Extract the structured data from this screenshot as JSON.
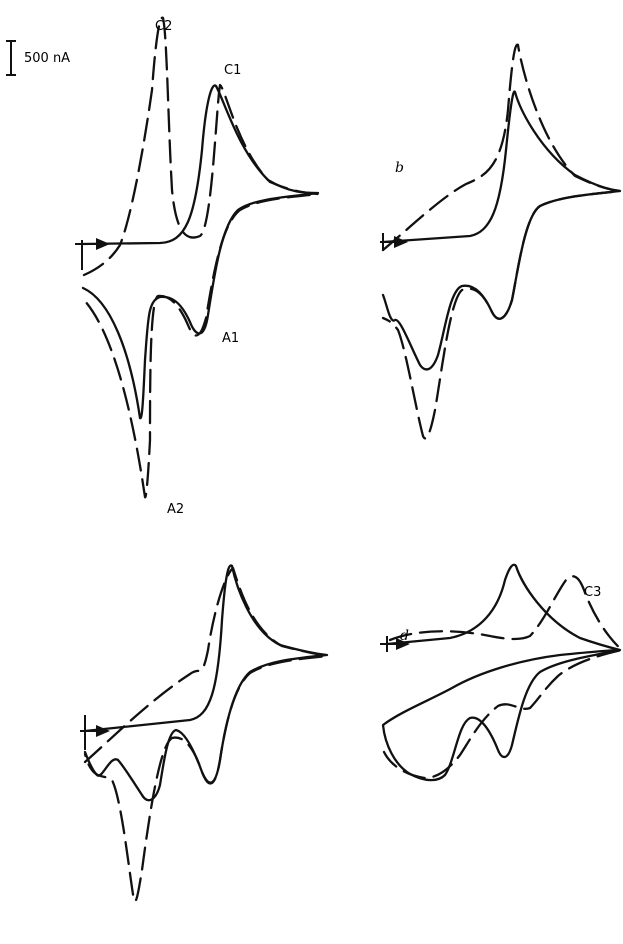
{
  "figure": {
    "scale_bar_label": "500 nA",
    "peak_labels": {
      "c1": "C1",
      "c2": "C2",
      "a1": "A1",
      "a2": "A2",
      "c3": "C3"
    },
    "panel_labels": {
      "b": "b",
      "d": "d"
    }
  },
  "chart_data": [
    {
      "type": "line",
      "panel": "a",
      "series": [
        {
          "style": "solid"
        },
        {
          "style": "dashed"
        }
      ],
      "annotations": [
        "C1",
        "C2",
        "A1",
        "A2"
      ],
      "scale_bar": "500 nA"
    },
    {
      "type": "line",
      "panel": "b",
      "series": [
        {
          "style": "solid"
        },
        {
          "style": "dashed"
        }
      ]
    },
    {
      "type": "line",
      "panel": "c",
      "series": [
        {
          "style": "solid"
        },
        {
          "style": "dashed"
        }
      ]
    },
    {
      "type": "line",
      "panel": "d",
      "series": [
        {
          "style": "solid"
        },
        {
          "style": "dashed"
        }
      ],
      "annotations": [
        "C3"
      ]
    }
  ]
}
